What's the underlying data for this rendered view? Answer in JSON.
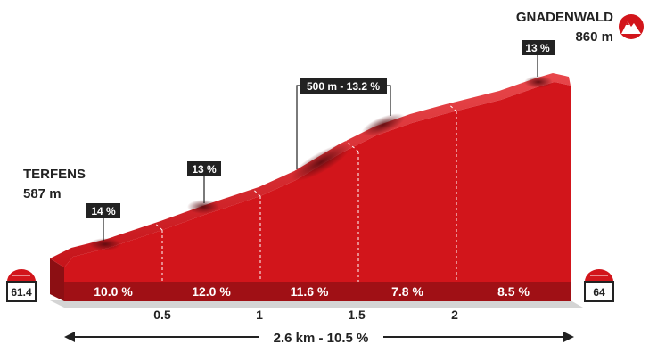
{
  "start": {
    "name": "TERFENS",
    "altitude": "587 m",
    "km_marker": "61.4"
  },
  "finish": {
    "name": "GNADENWALD",
    "altitude": "860 m",
    "km_marker": "64"
  },
  "segments": [
    {
      "gradient": "10.0 %",
      "value": 10.0
    },
    {
      "gradient": "12.0 %",
      "value": 12.0
    },
    {
      "gradient": "11.6 %",
      "value": 11.6
    },
    {
      "gradient": "7.8 %",
      "value": 7.8
    },
    {
      "gradient": "8.5 %",
      "value": 8.5
    }
  ],
  "distance_ticks": [
    "0.5",
    "1",
    "1.5",
    "2"
  ],
  "peak_labels": [
    "14 %",
    "13 %",
    "500 m - 13.2 %",
    "13 %"
  ],
  "summary": "2.6 km - 10.5 %",
  "colors": {
    "fill": "#d2151b",
    "dark": "#6e0c10",
    "base": "#a01015",
    "frame": "#222222"
  }
}
